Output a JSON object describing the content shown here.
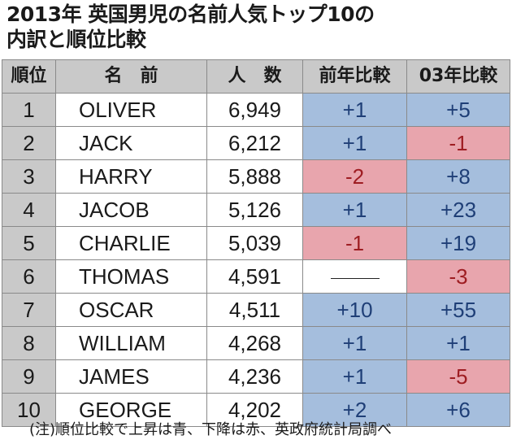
{
  "title_line1": "2013年 英国男児の名前人気トップ10の",
  "title_line2": "内訳と順位比較",
  "note": "(注)順位比較で上昇は青、下降は赤、英政府統計局調べ",
  "colors": {
    "up_fill": "#a5bedd",
    "up_text": "#1f3f77",
    "down_fill": "#e8a5ad",
    "down_text": "#9e1d22",
    "header_fill": "#c9c9c9"
  },
  "chart_data": {
    "type": "table",
    "columns": [
      "順位",
      "名　前",
      "人　数",
      "前年比較",
      "03年比較"
    ],
    "rows": [
      {
        "rank": "1",
        "name": "OLIVER",
        "count": "6,949",
        "prev": "+1",
        "prev_dir": "up",
        "y03": "+5",
        "y03_dir": "up"
      },
      {
        "rank": "2",
        "name": "JACK",
        "count": "6,212",
        "prev": "+1",
        "prev_dir": "up",
        "y03": "-1",
        "y03_dir": "down"
      },
      {
        "rank": "3",
        "name": "HARRY",
        "count": "5,888",
        "prev": "-2",
        "prev_dir": "down",
        "y03": "+8",
        "y03_dir": "up"
      },
      {
        "rank": "4",
        "name": "JACOB",
        "count": "5,126",
        "prev": "+1",
        "prev_dir": "up",
        "y03": "+23",
        "y03_dir": "up"
      },
      {
        "rank": "5",
        "name": "CHARLIE",
        "count": "5,039",
        "prev": "-1",
        "prev_dir": "down",
        "y03": "+19",
        "y03_dir": "up"
      },
      {
        "rank": "6",
        "name": "THOMAS",
        "count": "4,591",
        "prev": "",
        "prev_dir": "same",
        "y03": "-3",
        "y03_dir": "down"
      },
      {
        "rank": "7",
        "name": "OSCAR",
        "count": "4,511",
        "prev": "+10",
        "prev_dir": "up",
        "y03": "+55",
        "y03_dir": "up"
      },
      {
        "rank": "8",
        "name": "WILLIAM",
        "count": "4,268",
        "prev": "+1",
        "prev_dir": "up",
        "y03": "+1",
        "y03_dir": "up"
      },
      {
        "rank": "9",
        "name": "JAMES",
        "count": "4,236",
        "prev": "+1",
        "prev_dir": "up",
        "y03": "-5",
        "y03_dir": "down"
      },
      {
        "rank": "10",
        "name": "GEORGE",
        "count": "4,202",
        "prev": "+2",
        "prev_dir": "up",
        "y03": "+6",
        "y03_dir": "up"
      }
    ]
  }
}
